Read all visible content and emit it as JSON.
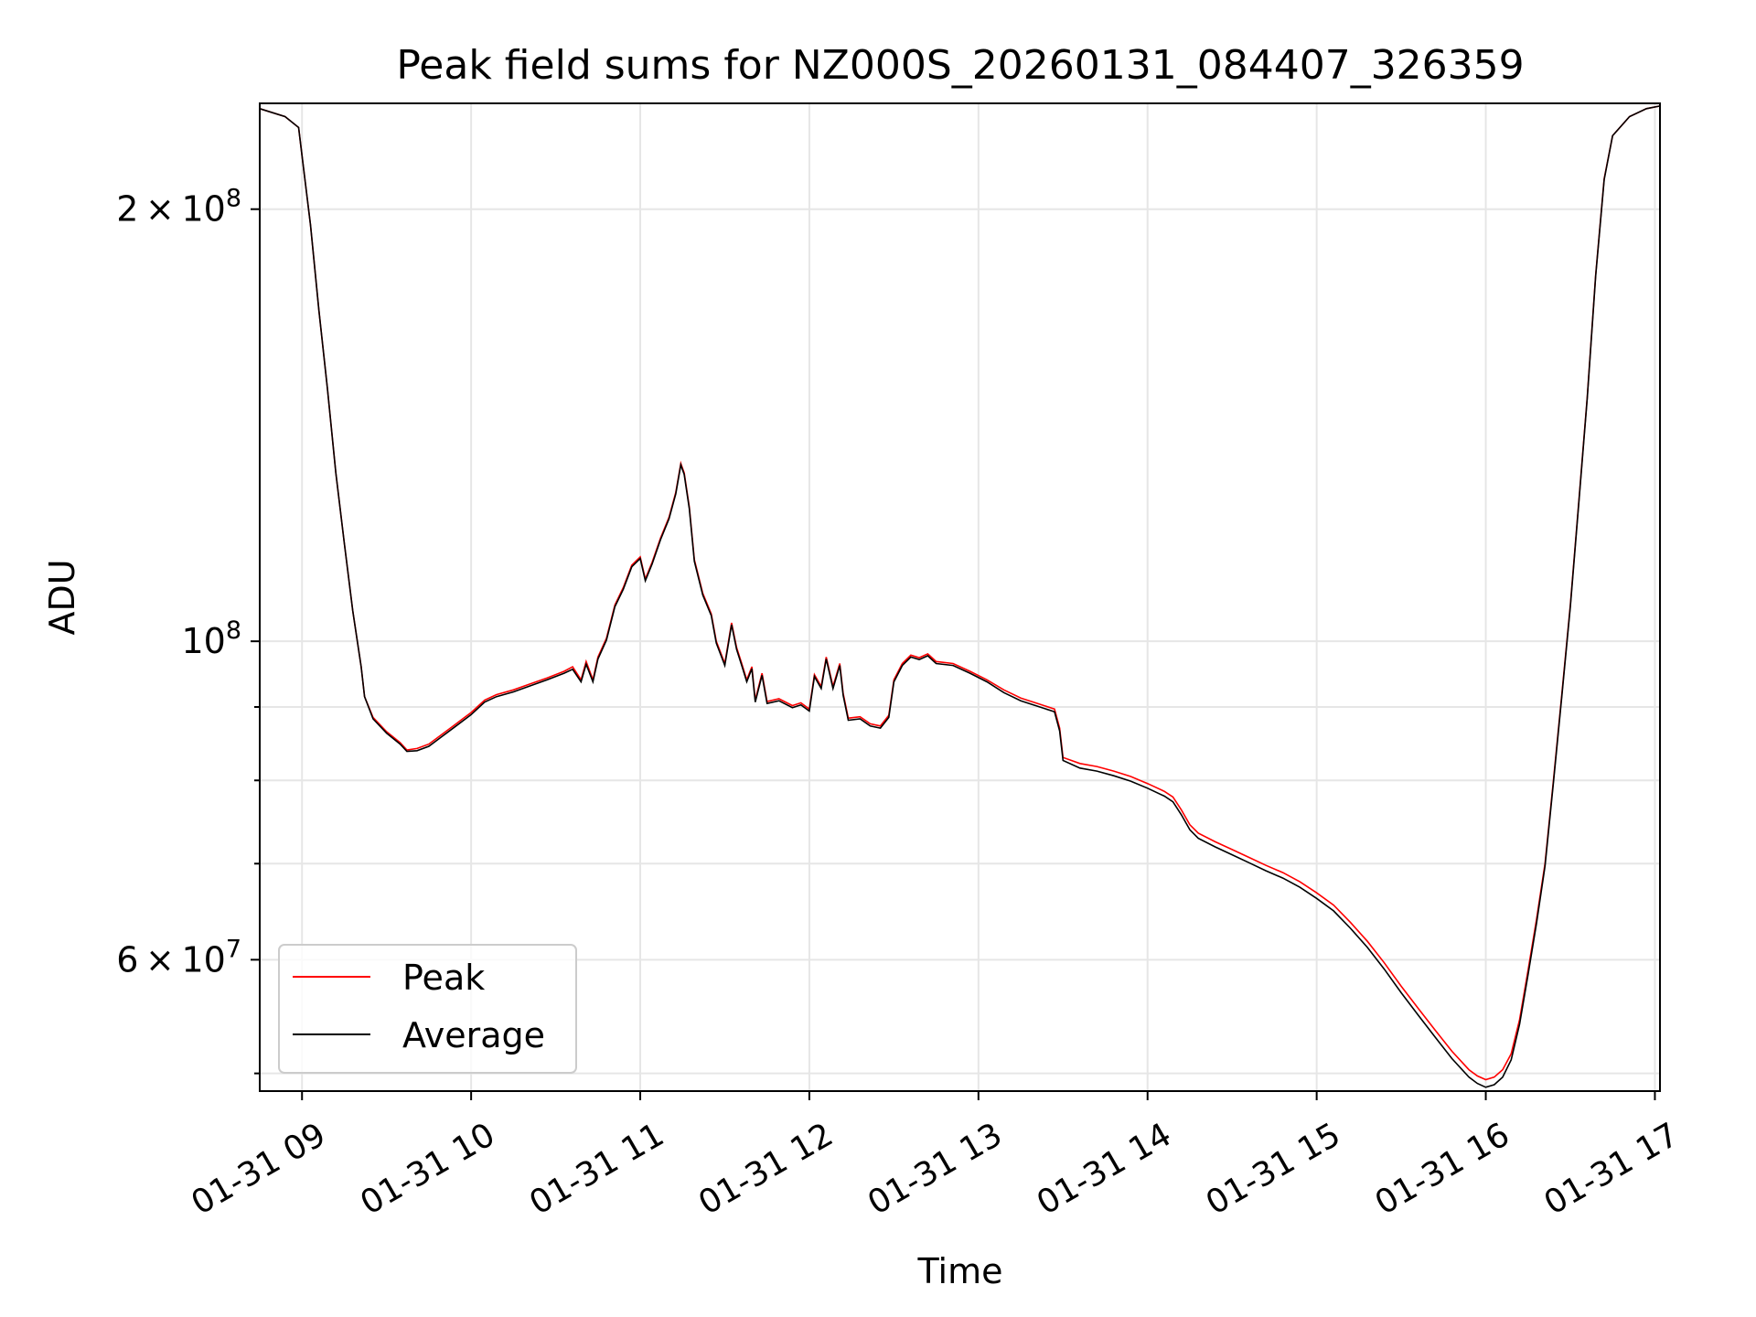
{
  "chart_data": {
    "type": "line",
    "title": "Peak field sums for NZ000S_20260131_084407_326359",
    "xlabel": "Time",
    "ylabel": "ADU",
    "yscale": "log",
    "xlim": [
      8.75,
      17.03
    ],
    "ylim": [
      48600000,
      237000000
    ],
    "grid": true,
    "legend_position": "lower-left",
    "x_ticks": [
      {
        "value": 9,
        "label": "01-31 09"
      },
      {
        "value": 10,
        "label": "01-31 10"
      },
      {
        "value": 11,
        "label": "01-31 11"
      },
      {
        "value": 12,
        "label": "01-31 12"
      },
      {
        "value": 13,
        "label": "01-31 13"
      },
      {
        "value": 14,
        "label": "01-31 14"
      },
      {
        "value": 15,
        "label": "01-31 15"
      },
      {
        "value": 16,
        "label": "01-31 16"
      },
      {
        "value": 17,
        "label": "01-31 17"
      }
    ],
    "y_major_ticks": [
      {
        "value": 60000000,
        "mant": "6",
        "exp": "7"
      },
      {
        "value": 100000000,
        "mant": "",
        "exp": "8"
      },
      {
        "value": 200000000,
        "mant": "2",
        "exp": "8"
      }
    ],
    "y_minor_ticks": [
      50000000,
      70000000,
      80000000,
      90000000
    ],
    "series": [
      {
        "name": "Peak",
        "color": "#ff0000",
        "points": [
          [
            8.75,
            235000000
          ],
          [
            8.9,
            232000000
          ],
          [
            8.98,
            228000000
          ],
          [
            9.0,
            218000000
          ],
          [
            9.05,
            195000000
          ],
          [
            9.1,
            170000000
          ],
          [
            9.15,
            150000000
          ],
          [
            9.2,
            131000000
          ],
          [
            9.25,
            117000000
          ],
          [
            9.3,
            105000000
          ],
          [
            9.35,
            96000000
          ],
          [
            9.37,
            91500000
          ],
          [
            9.42,
            88500000
          ],
          [
            9.5,
            86500000
          ],
          [
            9.58,
            85000000
          ],
          [
            9.62,
            84000000
          ],
          [
            9.68,
            84200000
          ],
          [
            9.75,
            84800000
          ],
          [
            9.82,
            86000000
          ],
          [
            9.9,
            87400000
          ],
          [
            10.0,
            89200000
          ],
          [
            10.08,
            91000000
          ],
          [
            10.15,
            91800000
          ],
          [
            10.25,
            92500000
          ],
          [
            10.35,
            93400000
          ],
          [
            10.45,
            94300000
          ],
          [
            10.55,
            95300000
          ],
          [
            10.6,
            96000000
          ],
          [
            10.65,
            94000000
          ],
          [
            10.68,
            96800000
          ],
          [
            10.72,
            94000000
          ],
          [
            10.75,
            97500000
          ],
          [
            10.8,
            100500000
          ],
          [
            10.85,
            106000000
          ],
          [
            10.9,
            109000000
          ],
          [
            10.95,
            113000000
          ],
          [
            11.0,
            114500000
          ],
          [
            11.03,
            110500000
          ],
          [
            11.07,
            113500000
          ],
          [
            11.12,
            118000000
          ],
          [
            11.17,
            122000000
          ],
          [
            11.21,
            127000000
          ],
          [
            11.24,
            133000000
          ],
          [
            11.26,
            131000000
          ],
          [
            11.29,
            124000000
          ],
          [
            11.32,
            114000000
          ],
          [
            11.37,
            108000000
          ],
          [
            11.42,
            104500000
          ],
          [
            11.45,
            100000000
          ],
          [
            11.5,
            96500000
          ],
          [
            11.54,
            103000000
          ],
          [
            11.57,
            99000000
          ],
          [
            11.6,
            96500000
          ],
          [
            11.63,
            94000000
          ],
          [
            11.66,
            96000000
          ],
          [
            11.68,
            91000000
          ],
          [
            11.72,
            95000000
          ],
          [
            11.75,
            90800000
          ],
          [
            11.82,
            91200000
          ],
          [
            11.9,
            90200000
          ],
          [
            11.95,
            90600000
          ],
          [
            12.0,
            89700000
          ],
          [
            12.03,
            94800000
          ],
          [
            12.07,
            93000000
          ],
          [
            12.1,
            97500000
          ],
          [
            12.14,
            93000000
          ],
          [
            12.18,
            96500000
          ],
          [
            12.2,
            92000000
          ],
          [
            12.23,
            88400000
          ],
          [
            12.3,
            88600000
          ],
          [
            12.36,
            87600000
          ],
          [
            12.42,
            87300000
          ],
          [
            12.47,
            88800000
          ],
          [
            12.5,
            94000000
          ],
          [
            12.55,
            96500000
          ],
          [
            12.6,
            97800000
          ],
          [
            12.65,
            97400000
          ],
          [
            12.7,
            98000000
          ],
          [
            12.75,
            96800000
          ],
          [
            12.85,
            96500000
          ],
          [
            12.95,
            95300000
          ],
          [
            13.05,
            94000000
          ],
          [
            13.15,
            92500000
          ],
          [
            13.25,
            91300000
          ],
          [
            13.35,
            90500000
          ],
          [
            13.45,
            89700000
          ],
          [
            13.48,
            87000000
          ],
          [
            13.5,
            83000000
          ],
          [
            13.6,
            82200000
          ],
          [
            13.7,
            81800000
          ],
          [
            13.8,
            81200000
          ],
          [
            13.9,
            80500000
          ],
          [
            14.0,
            79600000
          ],
          [
            14.1,
            78600000
          ],
          [
            14.15,
            77900000
          ],
          [
            14.2,
            76300000
          ],
          [
            14.25,
            74500000
          ],
          [
            14.3,
            73500000
          ],
          [
            14.4,
            72500000
          ],
          [
            14.5,
            71600000
          ],
          [
            14.6,
            70700000
          ],
          [
            14.7,
            69800000
          ],
          [
            14.8,
            69000000
          ],
          [
            14.9,
            68000000
          ],
          [
            15.0,
            66800000
          ],
          [
            15.1,
            65500000
          ],
          [
            15.2,
            63700000
          ],
          [
            15.3,
            61800000
          ],
          [
            15.4,
            59700000
          ],
          [
            15.5,
            57500000
          ],
          [
            15.6,
            55500000
          ],
          [
            15.7,
            53600000
          ],
          [
            15.8,
            51800000
          ],
          [
            15.9,
            50300000
          ],
          [
            15.95,
            49800000
          ],
          [
            16.0,
            49500000
          ],
          [
            16.05,
            49700000
          ],
          [
            16.1,
            50300000
          ],
          [
            16.15,
            51600000
          ],
          [
            16.2,
            54500000
          ],
          [
            16.25,
            59000000
          ],
          [
            16.3,
            64000000
          ],
          [
            16.35,
            70000000
          ],
          [
            16.4,
            80000000
          ],
          [
            16.45,
            92000000
          ],
          [
            16.5,
            106000000
          ],
          [
            16.55,
            125000000
          ],
          [
            16.6,
            148000000
          ],
          [
            16.65,
            180000000
          ],
          [
            16.7,
            210000000
          ],
          [
            16.75,
            225000000
          ],
          [
            16.85,
            232000000
          ],
          [
            16.95,
            235000000
          ],
          [
            17.03,
            236000000
          ]
        ]
      },
      {
        "name": "Average",
        "color": "#000000",
        "points": [
          [
            8.75,
            235000000
          ],
          [
            8.9,
            232000000
          ],
          [
            8.98,
            228000000
          ],
          [
            9.0,
            218000000
          ],
          [
            9.05,
            195000000
          ],
          [
            9.1,
            170000000
          ],
          [
            9.15,
            150000000
          ],
          [
            9.2,
            131000000
          ],
          [
            9.25,
            117000000
          ],
          [
            9.3,
            105000000
          ],
          [
            9.35,
            96000000
          ],
          [
            9.37,
            91500000
          ],
          [
            9.42,
            88300000
          ],
          [
            9.5,
            86300000
          ],
          [
            9.58,
            84800000
          ],
          [
            9.62,
            83800000
          ],
          [
            9.68,
            83900000
          ],
          [
            9.75,
            84500000
          ],
          [
            9.82,
            85700000
          ],
          [
            9.9,
            87100000
          ],
          [
            10.0,
            88900000
          ],
          [
            10.08,
            90700000
          ],
          [
            10.15,
            91500000
          ],
          [
            10.25,
            92200000
          ],
          [
            10.35,
            93100000
          ],
          [
            10.45,
            94000000
          ],
          [
            10.55,
            95000000
          ],
          [
            10.6,
            95600000
          ],
          [
            10.65,
            93700000
          ],
          [
            10.68,
            96400000
          ],
          [
            10.72,
            93700000
          ],
          [
            10.75,
            97200000
          ],
          [
            10.8,
            100200000
          ],
          [
            10.85,
            105700000
          ],
          [
            10.9,
            108700000
          ],
          [
            10.95,
            112700000
          ],
          [
            11.0,
            114200000
          ],
          [
            11.03,
            110200000
          ],
          [
            11.07,
            113200000
          ],
          [
            11.12,
            117700000
          ],
          [
            11.17,
            121700000
          ],
          [
            11.21,
            126700000
          ],
          [
            11.24,
            132700000
          ],
          [
            11.26,
            130700000
          ],
          [
            11.29,
            123700000
          ],
          [
            11.32,
            113700000
          ],
          [
            11.37,
            107700000
          ],
          [
            11.42,
            104200000
          ],
          [
            11.45,
            99700000
          ],
          [
            11.5,
            96200000
          ],
          [
            11.54,
            102700000
          ],
          [
            11.57,
            98700000
          ],
          [
            11.6,
            96200000
          ],
          [
            11.63,
            93700000
          ],
          [
            11.66,
            95700000
          ],
          [
            11.68,
            90700000
          ],
          [
            11.72,
            94700000
          ],
          [
            11.75,
            90500000
          ],
          [
            11.82,
            90900000
          ],
          [
            11.9,
            89900000
          ],
          [
            11.95,
            90300000
          ],
          [
            12.0,
            89400000
          ],
          [
            12.03,
            94500000
          ],
          [
            12.07,
            92700000
          ],
          [
            12.1,
            97200000
          ],
          [
            12.14,
            92700000
          ],
          [
            12.18,
            96200000
          ],
          [
            12.2,
            91700000
          ],
          [
            12.23,
            88100000
          ],
          [
            12.3,
            88300000
          ],
          [
            12.36,
            87300000
          ],
          [
            12.42,
            87000000
          ],
          [
            12.47,
            88500000
          ],
          [
            12.5,
            93700000
          ],
          [
            12.55,
            96200000
          ],
          [
            12.6,
            97500000
          ],
          [
            12.65,
            97100000
          ],
          [
            12.7,
            97700000
          ],
          [
            12.75,
            96500000
          ],
          [
            12.85,
            96200000
          ],
          [
            12.95,
            95000000
          ],
          [
            13.05,
            93700000
          ],
          [
            13.15,
            92100000
          ],
          [
            13.25,
            90900000
          ],
          [
            13.35,
            90100000
          ],
          [
            13.45,
            89300000
          ],
          [
            13.48,
            86600000
          ],
          [
            13.5,
            82600000
          ],
          [
            13.6,
            81600000
          ],
          [
            13.7,
            81200000
          ],
          [
            13.8,
            80600000
          ],
          [
            13.9,
            79900000
          ],
          [
            14.0,
            79000000
          ],
          [
            14.1,
            78000000
          ],
          [
            14.15,
            77300000
          ],
          [
            14.2,
            75700000
          ],
          [
            14.25,
            73900000
          ],
          [
            14.3,
            72900000
          ],
          [
            14.4,
            71900000
          ],
          [
            14.5,
            71000000
          ],
          [
            14.6,
            70100000
          ],
          [
            14.7,
            69200000
          ],
          [
            14.8,
            68400000
          ],
          [
            14.9,
            67400000
          ],
          [
            15.0,
            66200000
          ],
          [
            15.1,
            64900000
          ],
          [
            15.2,
            63100000
          ],
          [
            15.3,
            61200000
          ],
          [
            15.4,
            59100000
          ],
          [
            15.5,
            56900000
          ],
          [
            15.6,
            54900000
          ],
          [
            15.7,
            53000000
          ],
          [
            15.8,
            51200000
          ],
          [
            15.9,
            49700000
          ],
          [
            15.95,
            49200000
          ],
          [
            16.0,
            48900000
          ],
          [
            16.05,
            49100000
          ],
          [
            16.1,
            49700000
          ],
          [
            16.15,
            51100000
          ],
          [
            16.2,
            54100000
          ],
          [
            16.25,
            58600000
          ],
          [
            16.3,
            63600000
          ],
          [
            16.35,
            69700000
          ],
          [
            16.4,
            79700000
          ],
          [
            16.45,
            91700000
          ],
          [
            16.5,
            105700000
          ],
          [
            16.55,
            124700000
          ],
          [
            16.6,
            147700000
          ],
          [
            16.65,
            179700000
          ],
          [
            16.7,
            209700000
          ],
          [
            16.75,
            225000000
          ],
          [
            16.85,
            232000000
          ],
          [
            16.95,
            235000000
          ],
          [
            17.03,
            236000000
          ]
        ]
      }
    ]
  }
}
